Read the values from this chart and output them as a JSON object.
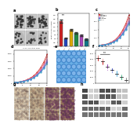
{
  "bar_colors": [
    "#cc2222",
    "#2244bb",
    "#ddaa00",
    "#228844",
    "#aa44bb",
    "#117788"
  ],
  "bar_values": [
    3.2,
    1.0,
    2.1,
    1.7,
    1.4,
    0.9
  ],
  "bar_labels": [
    "shCtrl",
    "shOTUD5-1",
    "shOTUD5-2",
    "OE-Ctrl",
    "OE-OTUD5",
    "OE+sh"
  ],
  "line_colors_c": [
    "#cc2222",
    "#e06060",
    "#dd88aa",
    "#9966cc",
    "#4466cc",
    "#44aacc"
  ],
  "line_colors_d": [
    "#cc2222",
    "#e06060",
    "#dd88aa",
    "#9966cc",
    "#4466cc",
    "#44aacc"
  ],
  "growth_days": [
    0,
    2,
    4,
    6,
    8,
    10,
    12,
    14,
    16,
    18,
    20
  ],
  "growth_values_c": [
    [
      200,
      280,
      400,
      600,
      900,
      1300,
      1900,
      2800,
      4000,
      5500,
      7500
    ],
    [
      200,
      270,
      380,
      570,
      850,
      1220,
      1780,
      2600,
      3700,
      5100,
      6900
    ],
    [
      200,
      260,
      365,
      545,
      810,
      1160,
      1680,
      2450,
      3480,
      4780,
      6500
    ],
    [
      200,
      250,
      345,
      510,
      755,
      1080,
      1560,
      2270,
      3220,
      4430,
      6000
    ],
    [
      200,
      240,
      330,
      485,
      715,
      1020,
      1470,
      2140,
      3030,
      4160,
      5640
    ],
    [
      200,
      230,
      315,
      460,
      675,
      960,
      1380,
      2010,
      2850,
      3910,
      5300
    ]
  ],
  "growth_values_d": [
    [
      200,
      290,
      420,
      640,
      970,
      1420,
      2050,
      2950,
      4200,
      5800,
      7900
    ],
    [
      200,
      275,
      395,
      600,
      900,
      1310,
      1880,
      2700,
      3840,
      5280,
      7200
    ],
    [
      200,
      265,
      375,
      565,
      845,
      1225,
      1750,
      2510,
      3560,
      4880,
      6650
    ],
    [
      200,
      255,
      358,
      535,
      795,
      1145,
      1630,
      2330,
      3300,
      4520,
      6150
    ],
    [
      200,
      245,
      342,
      508,
      752,
      1080,
      1535,
      2190,
      3100,
      4240,
      5770
    ],
    [
      200,
      235,
      325,
      480,
      708,
      1015,
      1440,
      2050,
      2900,
      3960,
      5390
    ]
  ],
  "scatter_colors": [
    "#cc2222",
    "#cc2222",
    "#9944bb",
    "#4455cc",
    "#44aadd",
    "#44bb88",
    "#888888"
  ],
  "scatter_y_vals": [
    4200,
    3600,
    2800,
    2200,
    1600,
    1000,
    500
  ],
  "wb_rows": 5,
  "wb_cols": 8,
  "background_color": "#ffffff",
  "ihc_colors": [
    "#d4c4a8",
    "#c8b090",
    "#b89870",
    "#a88050"
  ],
  "colony_bg": "#d0d0d0",
  "spheroid_bg": "#6aafe6"
}
